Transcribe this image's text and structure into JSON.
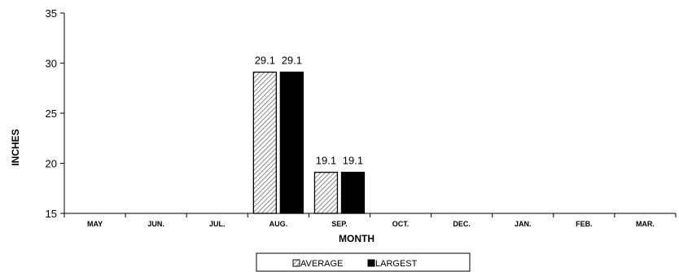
{
  "chart_data": {
    "type": "bar",
    "title": "",
    "xlabel": "MONTH",
    "ylabel": "INCHES",
    "ylim": [
      15,
      35
    ],
    "yticks": [
      15,
      20,
      25,
      30,
      35
    ],
    "categories": [
      "MAY",
      "JUN.",
      "JUL.",
      "AUG.",
      "SEP.",
      "OCT.",
      "DEC.",
      "JAN.",
      "FEB.",
      "MAR."
    ],
    "series": [
      {
        "name": "AVERAGE",
        "color": "#ffffff",
        "pattern": "diagonal-hatch",
        "values": [
          null,
          null,
          null,
          29.1,
          19.1,
          null,
          null,
          null,
          null,
          null
        ],
        "labels": [
          null,
          null,
          null,
          "29.1",
          "19.1",
          null,
          null,
          null,
          null,
          null
        ]
      },
      {
        "name": "LARGEST",
        "color": "#000000",
        "pattern": "solid",
        "values": [
          null,
          null,
          null,
          29.1,
          19.1,
          null,
          null,
          null,
          null,
          null
        ],
        "labels": [
          null,
          null,
          null,
          "29.1",
          "19.1",
          null,
          null,
          null,
          null,
          null
        ]
      }
    ],
    "grid": false,
    "legend_position": "bottom"
  }
}
